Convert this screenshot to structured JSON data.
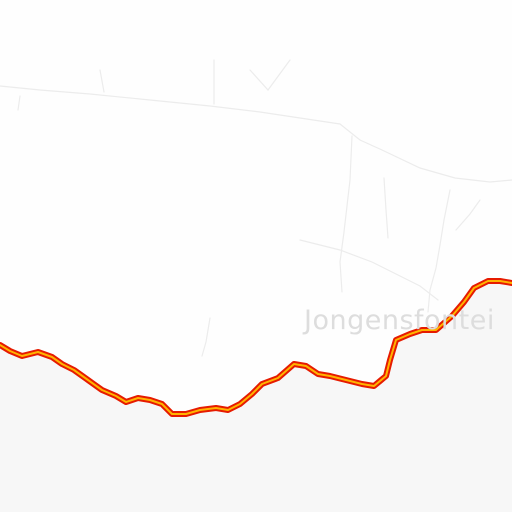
{
  "map": {
    "place_label": "Jongensfontei",
    "colors": {
      "land": "#fefefe",
      "water": "#f7f7f7",
      "road": "#ececec",
      "coast_outer": "#e61b00",
      "coast_inner": "#ffb400"
    },
    "icons": {
      "place_marker": "white-dot-marker"
    }
  }
}
